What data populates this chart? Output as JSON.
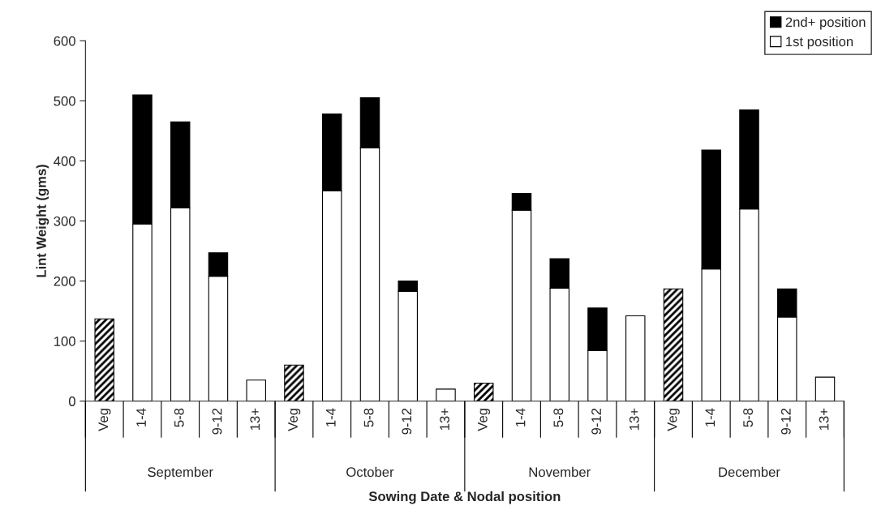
{
  "chart_data": {
    "type": "bar",
    "stacked": true,
    "xlabel": "Sowing Date & Nodal position",
    "ylabel": "Lint Weight (gms)",
    "categories": [
      "Veg",
      "1-4",
      "5-8",
      "9-12",
      "13+",
      "Veg",
      "1-4",
      "5-8",
      "9-12",
      "13+",
      "Veg",
      "1-4",
      "5-8",
      "9-12",
      "13+",
      "Veg",
      "1-4",
      "5-8",
      "9-12",
      "13+"
    ],
    "series": [
      {
        "color": "#000000",
        "values": [
          137,
          null,
          null,
          null,
          null,
          60,
          null,
          null,
          null,
          null,
          30,
          null,
          null,
          null,
          null,
          187,
          null,
          null,
          null,
          null
        ]
      },
      {
        "name": "1st position",
        "color": "#ffffff",
        "values": [
          null,
          295,
          322,
          208,
          35,
          null,
          350,
          422,
          183,
          20,
          null,
          318,
          188,
          84,
          142,
          null,
          220,
          320,
          140,
          40
        ]
      },
      {
        "name": "2nd+ position",
        "color": "#000000",
        "values": [
          null,
          215,
          143,
          39,
          null,
          null,
          128,
          83,
          17,
          null,
          null,
          28,
          49,
          71,
          null,
          null,
          198,
          165,
          47,
          null
        ]
      }
    ],
    "annotations": [
      "September",
      "October",
      "November",
      "December"
    ],
    "ylim": [
      0,
      600
    ],
    "yticks": [
      0,
      100,
      200,
      300,
      400,
      500,
      600
    ],
    "grid": false,
    "legend": "top right"
  }
}
